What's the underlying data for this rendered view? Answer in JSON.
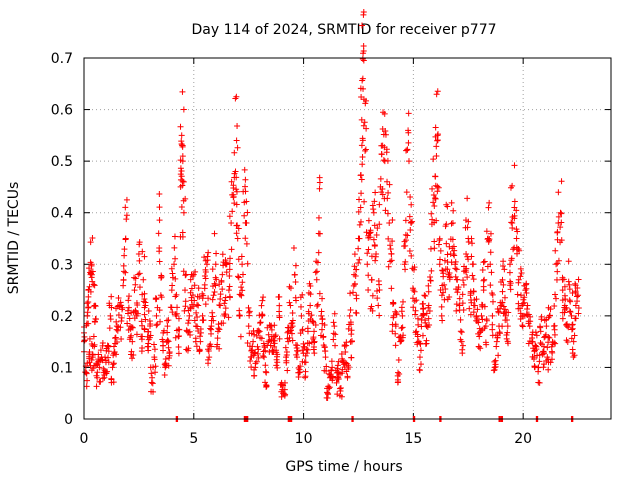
{
  "chart_data": {
    "type": "scatter",
    "title": "Day 114 of 2024, SRMTID for receiver p777",
    "xlabel": "GPS time / hours",
    "ylabel": "SRMTID / TECUs",
    "xlim": [
      0,
      24
    ],
    "ylim": [
      0,
      0.7
    ],
    "x_ticks": [
      0,
      5,
      10,
      15,
      20
    ],
    "x_tick_labels": [
      "0",
      "5",
      "10",
      "15",
      "20"
    ],
    "y_ticks": [
      0,
      0.1,
      0.2,
      0.3,
      0.4,
      0.5,
      0.6,
      0.7
    ],
    "y_tick_labels": [
      "0",
      "0.1",
      "0.2",
      "0.3",
      "0.4",
      "0.5",
      "0.6",
      "0.7"
    ],
    "grid": true,
    "marker": "+",
    "color": "#ff0000",
    "series": [
      {
        "name": "SRMTID",
        "envelope_description": "dense point cloud estimated from plot",
        "points": [
          [
            0.0,
            0.15
          ],
          [
            0.1,
            0.09
          ],
          [
            0.15,
            0.2
          ],
          [
            0.2,
            0.25
          ],
          [
            0.25,
            0.13
          ],
          [
            0.3,
            0.28
          ],
          [
            0.35,
            0.3
          ],
          [
            0.4,
            0.12
          ],
          [
            0.45,
            0.16
          ],
          [
            0.5,
            0.22
          ],
          [
            0.6,
            0.08
          ],
          [
            0.7,
            0.1
          ],
          [
            0.8,
            0.12
          ],
          [
            0.9,
            0.09
          ],
          [
            1.0,
            0.11
          ],
          [
            1.1,
            0.14
          ],
          [
            1.2,
            0.2
          ],
          [
            1.3,
            0.1
          ],
          [
            1.4,
            0.13
          ],
          [
            1.5,
            0.18
          ],
          [
            1.6,
            0.22
          ],
          [
            1.7,
            0.19
          ],
          [
            1.8,
            0.27
          ],
          [
            1.9,
            0.35
          ],
          [
            2.0,
            0.21
          ],
          [
            2.1,
            0.18
          ],
          [
            2.2,
            0.15
          ],
          [
            2.3,
            0.25
          ],
          [
            2.4,
            0.2
          ],
          [
            2.5,
            0.32
          ],
          [
            2.6,
            0.16
          ],
          [
            2.7,
            0.27
          ],
          [
            2.8,
            0.22
          ],
          [
            2.9,
            0.14
          ],
          [
            3.0,
            0.19
          ],
          [
            3.1,
            0.08
          ],
          [
            3.2,
            0.12
          ],
          [
            3.3,
            0.2
          ],
          [
            3.4,
            0.36
          ],
          [
            3.5,
            0.24
          ],
          [
            3.6,
            0.15
          ],
          [
            3.7,
            0.1
          ],
          [
            3.8,
            0.18
          ],
          [
            3.9,
            0.13
          ],
          [
            4.0,
            0.25
          ],
          [
            4.1,
            0.3
          ],
          [
            4.2,
            0.2
          ],
          [
            4.3,
            0.16
          ],
          [
            4.4,
            0.45
          ],
          [
            4.45,
            0.55
          ],
          [
            4.5,
            0.5
          ],
          [
            4.55,
            0.4
          ],
          [
            4.6,
            0.25
          ],
          [
            4.7,
            0.17
          ],
          [
            4.8,
            0.2
          ],
          [
            4.9,
            0.23
          ],
          [
            5.0,
            0.28
          ],
          [
            5.1,
            0.18
          ],
          [
            5.2,
            0.22
          ],
          [
            5.3,
            0.15
          ],
          [
            5.4,
            0.2
          ],
          [
            5.5,
            0.26
          ],
          [
            5.6,
            0.3
          ],
          [
            5.7,
            0.12
          ],
          [
            5.8,
            0.18
          ],
          [
            5.9,
            0.24
          ],
          [
            6.0,
            0.3
          ],
          [
            6.1,
            0.17
          ],
          [
            6.2,
            0.22
          ],
          [
            6.3,
            0.28
          ],
          [
            6.4,
            0.2
          ],
          [
            6.5,
            0.3
          ],
          [
            6.6,
            0.25
          ],
          [
            6.7,
            0.38
          ],
          [
            6.8,
            0.43
          ],
          [
            6.9,
            0.48
          ],
          [
            6.95,
            0.54
          ],
          [
            7.0,
            0.35
          ],
          [
            7.1,
            0.2
          ],
          [
            7.2,
            0.3
          ],
          [
            7.3,
            0.42
          ],
          [
            7.4,
            0.38
          ],
          [
            7.5,
            0.18
          ],
          [
            7.6,
            0.12
          ],
          [
            7.7,
            0.15
          ],
          [
            7.8,
            0.1
          ],
          [
            7.9,
            0.14
          ],
          [
            8.0,
            0.17
          ],
          [
            8.1,
            0.2
          ],
          [
            8.2,
            0.12
          ],
          [
            8.3,
            0.09
          ],
          [
            8.4,
            0.15
          ],
          [
            8.5,
            0.18
          ],
          [
            8.6,
            0.13
          ],
          [
            8.7,
            0.16
          ],
          [
            8.8,
            0.11
          ],
          [
            8.9,
            0.2
          ],
          [
            9.0,
            0.07
          ],
          [
            9.1,
            0.05
          ],
          [
            9.2,
            0.12
          ],
          [
            9.3,
            0.15
          ],
          [
            9.4,
            0.22
          ],
          [
            9.5,
            0.18
          ],
          [
            9.6,
            0.28
          ],
          [
            9.7,
            0.12
          ],
          [
            9.8,
            0.09
          ],
          [
            9.9,
            0.2
          ],
          [
            10.0,
            0.14
          ],
          [
            10.1,
            0.11
          ],
          [
            10.2,
            0.17
          ],
          [
            10.3,
            0.22
          ],
          [
            10.4,
            0.19
          ],
          [
            10.5,
            0.15
          ],
          [
            10.6,
            0.27
          ],
          [
            10.7,
            0.39
          ],
          [
            10.8,
            0.2
          ],
          [
            10.9,
            0.16
          ],
          [
            11.0,
            0.12
          ],
          [
            11.1,
            0.05
          ],
          [
            11.2,
            0.08
          ],
          [
            11.3,
            0.1
          ],
          [
            11.4,
            0.18
          ],
          [
            11.5,
            0.07
          ],
          [
            11.6,
            0.09
          ],
          [
            11.7,
            0.06
          ],
          [
            11.8,
            0.11
          ],
          [
            11.9,
            0.13
          ],
          [
            12.0,
            0.08
          ],
          [
            12.1,
            0.2
          ],
          [
            12.2,
            0.15
          ],
          [
            12.3,
            0.28
          ],
          [
            12.4,
            0.24
          ],
          [
            12.5,
            0.35
          ],
          [
            12.6,
            0.41
          ],
          [
            12.65,
            0.58
          ],
          [
            12.7,
            0.66
          ],
          [
            12.75,
            0.62
          ],
          [
            12.8,
            0.52
          ],
          [
            12.9,
            0.3
          ],
          [
            13.0,
            0.36
          ],
          [
            13.1,
            0.27
          ],
          [
            13.2,
            0.4
          ],
          [
            13.3,
            0.32
          ],
          [
            13.4,
            0.22
          ],
          [
            13.5,
            0.45
          ],
          [
            13.6,
            0.53
          ],
          [
            13.7,
            0.5
          ],
          [
            13.8,
            0.46
          ],
          [
            13.9,
            0.38
          ],
          [
            14.0,
            0.32
          ],
          [
            14.1,
            0.2
          ],
          [
            14.2,
            0.18
          ],
          [
            14.3,
            0.09
          ],
          [
            14.4,
            0.15
          ],
          [
            14.5,
            0.2
          ],
          [
            14.6,
            0.3
          ],
          [
            14.7,
            0.44
          ],
          [
            14.8,
            0.5
          ],
          [
            14.9,
            0.38
          ],
          [
            15.0,
            0.25
          ],
          [
            15.1,
            0.21
          ],
          [
            15.2,
            0.16
          ],
          [
            15.3,
            0.12
          ],
          [
            15.4,
            0.2
          ],
          [
            15.5,
            0.24
          ],
          [
            15.6,
            0.18
          ],
          [
            15.7,
            0.22
          ],
          [
            15.8,
            0.33
          ],
          [
            15.9,
            0.42
          ],
          [
            16.0,
            0.47
          ],
          [
            16.05,
            0.51
          ],
          [
            16.1,
            0.55
          ],
          [
            16.2,
            0.3
          ],
          [
            16.3,
            0.24
          ],
          [
            16.4,
            0.26
          ],
          [
            16.5,
            0.34
          ],
          [
            16.6,
            0.28
          ],
          [
            16.7,
            0.32
          ],
          [
            16.8,
            0.38
          ],
          [
            16.9,
            0.3
          ],
          [
            17.0,
            0.27
          ],
          [
            17.1,
            0.22
          ],
          [
            17.2,
            0.15
          ],
          [
            17.3,
            0.26
          ],
          [
            17.4,
            0.32
          ],
          [
            17.5,
            0.35
          ],
          [
            17.6,
            0.24
          ],
          [
            17.7,
            0.3
          ],
          [
            17.8,
            0.22
          ],
          [
            17.9,
            0.19
          ],
          [
            18.0,
            0.16
          ],
          [
            18.1,
            0.2
          ],
          [
            18.2,
            0.25
          ],
          [
            18.3,
            0.18
          ],
          [
            18.4,
            0.35
          ],
          [
            18.5,
            0.3
          ],
          [
            18.6,
            0.2
          ],
          [
            18.7,
            0.1
          ],
          [
            18.8,
            0.15
          ],
          [
            18.9,
            0.18
          ],
          [
            19.0,
            0.22
          ],
          [
            19.1,
            0.26
          ],
          [
            19.2,
            0.2
          ],
          [
            19.3,
            0.18
          ],
          [
            19.4,
            0.3
          ],
          [
            19.5,
            0.38
          ],
          [
            19.6,
            0.41
          ],
          [
            19.7,
            0.35
          ],
          [
            19.8,
            0.27
          ],
          [
            19.9,
            0.24
          ],
          [
            20.0,
            0.2
          ],
          [
            20.1,
            0.25
          ],
          [
            20.2,
            0.22
          ],
          [
            20.3,
            0.18
          ],
          [
            20.4,
            0.15
          ],
          [
            20.5,
            0.12
          ],
          [
            20.6,
            0.14
          ],
          [
            20.7,
            0.1
          ],
          [
            20.8,
            0.17
          ],
          [
            20.9,
            0.13
          ],
          [
            21.0,
            0.16
          ],
          [
            21.1,
            0.12
          ],
          [
            21.2,
            0.2
          ],
          [
            21.3,
            0.14
          ],
          [
            21.4,
            0.18
          ],
          [
            21.5,
            0.3
          ],
          [
            21.6,
            0.38
          ],
          [
            21.7,
            0.4
          ],
          [
            21.8,
            0.25
          ],
          [
            21.9,
            0.22
          ],
          [
            22.0,
            0.18
          ],
          [
            22.1,
            0.26
          ],
          [
            22.2,
            0.2
          ],
          [
            22.3,
            0.15
          ],
          [
            22.4,
            0.22
          ],
          [
            22.5,
            0.24
          ]
        ]
      }
    ],
    "zero_line_points_x": [
      4.2,
      7.3,
      7.4,
      9.3,
      9.4,
      12.2,
      15.0,
      16.2,
      18.9,
      19.0,
      20.6,
      22.2
    ]
  }
}
